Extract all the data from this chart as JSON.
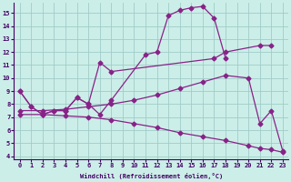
{
  "xlabel": "Windchill (Refroidissement éolien,°C)",
  "bg_color": "#cceee8",
  "grid_color": "#a0ccc8",
  "line_color": "#882288",
  "xlim": [
    -0.5,
    23.5
  ],
  "ylim": [
    3.8,
    15.8
  ],
  "xticks": [
    0,
    1,
    2,
    3,
    4,
    5,
    6,
    7,
    8,
    9,
    10,
    11,
    12,
    13,
    14,
    15,
    16,
    17,
    18,
    19,
    20,
    21,
    22,
    23
  ],
  "yticks": [
    4,
    5,
    6,
    7,
    8,
    9,
    10,
    11,
    12,
    13,
    14,
    15
  ],
  "series": [
    {
      "x": [
        0,
        1,
        2,
        3,
        4,
        5,
        6,
        7,
        8,
        11,
        12,
        13,
        14,
        15,
        16,
        17,
        18
      ],
      "y": [
        9.0,
        7.8,
        7.2,
        7.5,
        7.5,
        8.5,
        8.0,
        7.2,
        8.3,
        11.8,
        12.0,
        14.8,
        15.2,
        15.4,
        15.5,
        14.6,
        11.5
      ]
    },
    {
      "x": [
        0,
        1,
        2,
        3,
        4,
        5,
        6,
        7,
        8,
        17,
        18,
        21,
        22
      ],
      "y": [
        9.0,
        7.8,
        7.2,
        7.5,
        7.5,
        8.5,
        8.0,
        11.2,
        10.5,
        11.5,
        12.0,
        12.5,
        12.5
      ]
    },
    {
      "x": [
        0,
        2,
        4,
        6,
        8,
        10,
        12,
        14,
        16,
        18,
        20,
        21,
        22,
        23
      ],
      "y": [
        7.5,
        7.5,
        7.6,
        7.8,
        8.0,
        8.3,
        8.7,
        9.2,
        9.7,
        10.2,
        10.0,
        6.5,
        7.5,
        4.4
      ]
    },
    {
      "x": [
        0,
        2,
        4,
        6,
        8,
        10,
        12,
        14,
        16,
        18,
        20,
        21,
        22,
        23
      ],
      "y": [
        7.2,
        7.2,
        7.1,
        7.0,
        6.8,
        6.5,
        6.2,
        5.8,
        5.5,
        5.2,
        4.8,
        4.6,
        4.5,
        4.3
      ]
    }
  ]
}
